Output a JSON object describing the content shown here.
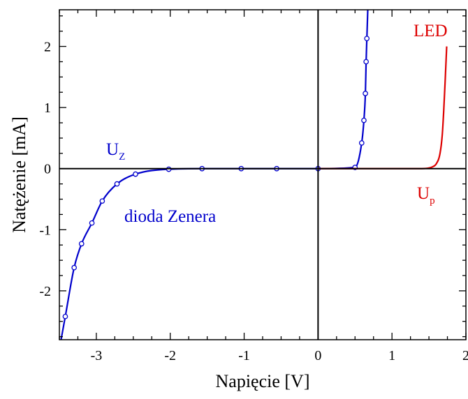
{
  "chart_data": {
    "type": "line",
    "xlabel": "Napięcie  [V]",
    "ylabel": "Natężenie  [mA]",
    "xlim": [
      -3.5,
      2
    ],
    "ylim": [
      -2.8,
      2.6
    ],
    "xticks": [
      -3,
      -2,
      -1,
      0,
      1,
      2
    ],
    "yticks": [
      -2,
      -1,
      0,
      1,
      2
    ],
    "grid": false,
    "series": [
      {
        "color": "#0000cc",
        "markers": true,
        "points": [
          [
            -3.42,
            -2.42
          ],
          [
            -3.3,
            -1.62
          ],
          [
            -3.2,
            -1.23
          ],
          [
            -3.06,
            -0.89
          ],
          [
            -2.92,
            -0.53
          ],
          [
            -2.72,
            -0.25
          ],
          [
            -2.47,
            -0.09
          ],
          [
            -2.02,
            -0.01
          ],
          [
            -1.57,
            0.0
          ],
          [
            -1.04,
            0.0
          ],
          [
            -0.56,
            0.0
          ],
          [
            0.0,
            0.0
          ],
          [
            0.5,
            0.02
          ],
          [
            0.59,
            0.42
          ],
          [
            0.62,
            0.79
          ],
          [
            0.64,
            1.23
          ],
          [
            0.65,
            1.75
          ],
          [
            0.66,
            2.13
          ]
        ]
      },
      {
        "color": "#dd0000",
        "markers": false,
        "points": [
          [
            0.0,
            0.0
          ],
          [
            1.0,
            0.0
          ],
          [
            1.4,
            0.0
          ],
          [
            1.5,
            0.01
          ],
          [
            1.55,
            0.03
          ],
          [
            1.6,
            0.08
          ],
          [
            1.65,
            0.25
          ],
          [
            1.68,
            0.55
          ],
          [
            1.7,
            0.95
          ],
          [
            1.72,
            1.45
          ],
          [
            1.74,
            2.0
          ]
        ]
      }
    ],
    "annotations": {
      "uz_main": "U",
      "uz_sub": "Z",
      "zener_label": "dioda Zenera",
      "led_label": "LED",
      "up_main": "U",
      "up_sub": "p"
    }
  }
}
